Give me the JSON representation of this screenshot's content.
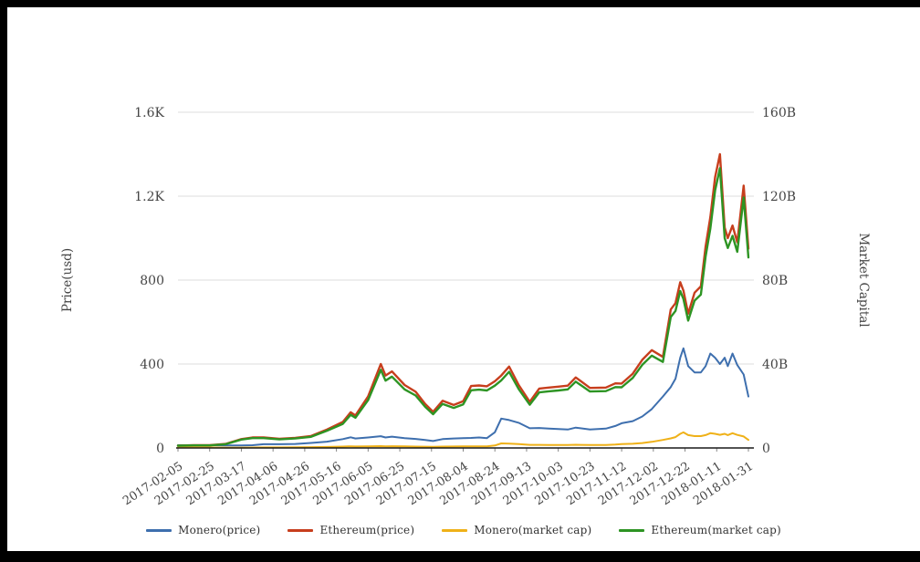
{
  "chart": {
    "left_axis_title": "Price(usd)",
    "right_axis_title": "Market Capital",
    "left_ticks": [
      {
        "value": 0,
        "label": "0"
      },
      {
        "value": 400,
        "label": "400"
      },
      {
        "value": 800,
        "label": "800"
      },
      {
        "value": 1200,
        "label": "1.2K"
      },
      {
        "value": 1600,
        "label": "1.6K"
      }
    ],
    "right_ticks": [
      {
        "value": 0,
        "label": "0"
      },
      {
        "value": 40,
        "label": "40B"
      },
      {
        "value": 80,
        "label": "80B"
      },
      {
        "value": 120,
        "label": "120B"
      },
      {
        "value": 160,
        "label": "160B"
      }
    ],
    "grid_color": "#dcdcdc",
    "axis_color": "#1a1a1a",
    "tick_text_color": "#444444"
  },
  "legend": {
    "items": [
      {
        "label": "Monero(price)",
        "color": "#3e6fae"
      },
      {
        "label": "Ethereum(price)",
        "color": "#c73e1d"
      },
      {
        "label": "Monero(market cap)",
        "color": "#efb118"
      },
      {
        "label": "Ethereum(market cap)",
        "color": "#2d9423"
      }
    ]
  },
  "chart_data": {
    "type": "line",
    "title": "",
    "xlabel": "",
    "left_axis": {
      "label": "Price(usd)",
      "range": [
        0,
        1600
      ],
      "tick_labels": [
        "0",
        "400",
        "800",
        "1.2K",
        "1.6K"
      ]
    },
    "right_axis": {
      "label": "Market Capital",
      "range": [
        0,
        160
      ],
      "tick_labels": [
        "0",
        "40B",
        "80B",
        "120B",
        "160B"
      ]
    },
    "grid": true,
    "legend_position": "bottom",
    "x_tick_labels": [
      "2017-02-05",
      "2017-02-25",
      "2017-03-17",
      "2017-04-06",
      "2017-04-26",
      "2017-05-16",
      "2017-06-05",
      "2017-06-25",
      "2017-07-15",
      "2017-08-04",
      "2017-08-24",
      "2017-09-13",
      "2017-10-03",
      "2017-10-23",
      "2017-11-12",
      "2017-12-02",
      "2017-12-22",
      "2018-01-11",
      "2018-01-31"
    ],
    "x": [
      "2017-02-05",
      "2017-02-15",
      "2017-02-25",
      "2017-03-07",
      "2017-03-17",
      "2017-03-24",
      "2017-03-31",
      "2017-04-10",
      "2017-04-20",
      "2017-04-30",
      "2017-05-10",
      "2017-05-20",
      "2017-05-25",
      "2017-05-28",
      "2017-06-05",
      "2017-06-13",
      "2017-06-16",
      "2017-06-20",
      "2017-06-28",
      "2017-07-05",
      "2017-07-11",
      "2017-07-16",
      "2017-07-22",
      "2017-07-29",
      "2017-08-04",
      "2017-08-09",
      "2017-08-14",
      "2017-08-19",
      "2017-08-24",
      "2017-08-28",
      "2017-09-02",
      "2017-09-08",
      "2017-09-15",
      "2017-09-21",
      "2017-09-27",
      "2017-10-03",
      "2017-10-09",
      "2017-10-14",
      "2017-10-23",
      "2017-11-02",
      "2017-11-08",
      "2017-11-12",
      "2017-11-19",
      "2017-11-25",
      "2017-12-01",
      "2017-12-08",
      "2017-12-13",
      "2017-12-16",
      "2017-12-19",
      "2017-12-21",
      "2017-12-24",
      "2017-12-28",
      "2018-01-01",
      "2018-01-04",
      "2018-01-07",
      "2018-01-10",
      "2018-01-13",
      "2018-01-16",
      "2018-01-18",
      "2018-01-21",
      "2018-01-24",
      "2018-01-28",
      "2018-01-31"
    ],
    "series": [
      {
        "name": "Monero(price)",
        "axis": "left",
        "color": "#3e6fae",
        "width": 2,
        "values": [
          13,
          13,
          13,
          12,
          12,
          13,
          18,
          18,
          19,
          24,
          30,
          42,
          51,
          45,
          50,
          56,
          50,
          54,
          47,
          43,
          38,
          33,
          42,
          45,
          47,
          48,
          50,
          47,
          75,
          140,
          133,
          120,
          94,
          95,
          92,
          90,
          88,
          97,
          88,
          92,
          105,
          118,
          128,
          150,
          185,
          245,
          290,
          330,
          430,
          475,
          390,
          360,
          360,
          390,
          450,
          430,
          400,
          430,
          390,
          450,
          395,
          350,
          245
        ]
      },
      {
        "name": "Ethereum(price)",
        "axis": "left",
        "color": "#c73e1d",
        "width": 2.4,
        "values": [
          11,
          13,
          13,
          19,
          42,
          50,
          50,
          44,
          48,
          57,
          88,
          124,
          170,
          155,
          245,
          400,
          345,
          365,
          300,
          268,
          210,
          172,
          225,
          205,
          223,
          295,
          298,
          294,
          318,
          345,
          388,
          300,
          220,
          283,
          288,
          292,
          297,
          336,
          286,
          288,
          308,
          307,
          354,
          420,
          466,
          434,
          660,
          690,
          790,
          750,
          640,
          740,
          770,
          960,
          1100,
          1290,
          1400,
          1050,
          1000,
          1060,
          980,
          1250,
          950
        ]
      },
      {
        "name": "Monero(market cap)",
        "axis": "right",
        "color": "#efb118",
        "width": 2,
        "values": [
          0.2,
          0.2,
          0.2,
          0.19,
          0.19,
          0.2,
          0.28,
          0.28,
          0.3,
          0.37,
          0.47,
          0.65,
          0.79,
          0.7,
          0.78,
          0.87,
          0.78,
          0.84,
          0.73,
          0.67,
          0.59,
          0.51,
          0.65,
          0.7,
          0.73,
          0.75,
          0.78,
          0.73,
          1.17,
          2.18,
          2.07,
          1.87,
          1.47,
          1.48,
          1.44,
          1.41,
          1.38,
          1.52,
          1.38,
          1.44,
          1.64,
          1.85,
          2.01,
          2.35,
          2.9,
          3.84,
          4.55,
          5.18,
          6.75,
          7.45,
          6.12,
          5.65,
          5.65,
          6.12,
          7.06,
          6.75,
          6.28,
          6.75,
          6.12,
          7.06,
          6.2,
          5.49,
          3.84
        ]
      },
      {
        "name": "Ethereum(market cap)",
        "axis": "right",
        "color": "#2d9423",
        "width": 2.4,
        "values": [
          1.1,
          1.2,
          1.2,
          1.8,
          4.0,
          4.7,
          4.7,
          4.1,
          4.5,
          5.3,
          8.2,
          11.5,
          15.8,
          14.4,
          22.8,
          37.2,
          32.1,
          34.0,
          27.9,
          25.0,
          19.6,
          16.1,
          21.0,
          19.1,
          20.8,
          27.5,
          27.8,
          27.4,
          29.7,
          32.2,
          36.3,
          28.1,
          20.6,
          26.5,
          27.0,
          27.4,
          27.9,
          31.6,
          26.9,
          27.1,
          29.0,
          28.9,
          33.4,
          39.6,
          44.0,
          41.0,
          62.4,
          65.3,
          74.8,
          71.0,
          60.7,
          70.2,
          73.1,
          91.2,
          104.6,
          122.7,
          133.3,
          100.0,
          95.3,
          101.1,
          93.5,
          119.4,
          90.8
        ]
      }
    ]
  }
}
